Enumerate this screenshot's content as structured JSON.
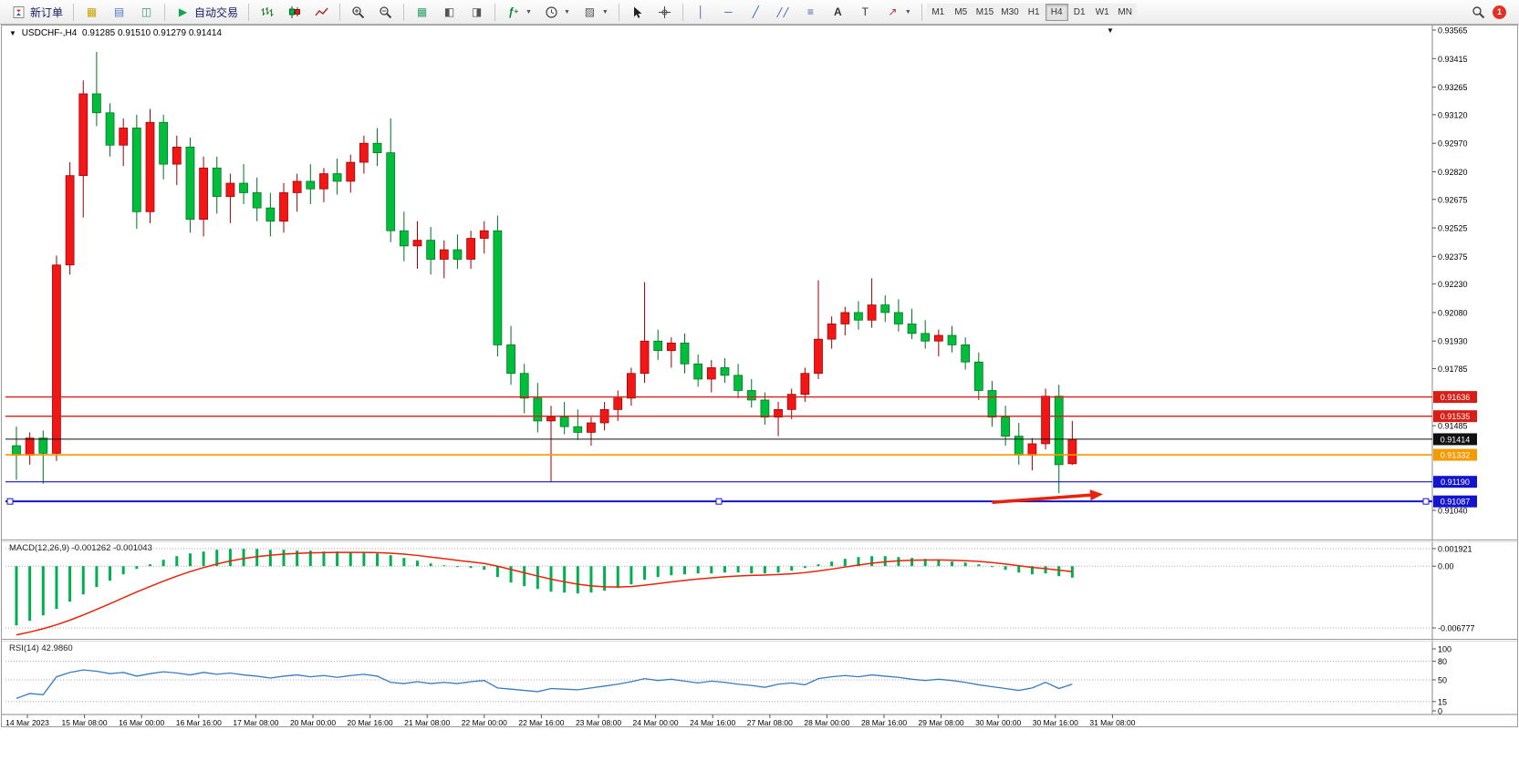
{
  "toolbar": {
    "new_order_label": "新订单",
    "auto_trading_label": "自动交易",
    "timeframes": [
      "M1",
      "M5",
      "M15",
      "M30",
      "H1",
      "H4",
      "D1",
      "W1",
      "MN"
    ],
    "active_timeframe": "H4",
    "notification_count": "1"
  },
  "chart": {
    "symbol_marker": "▼",
    "symbol_tf": "USDCHF-,H4",
    "ohlc_text": "0.91285 0.91510 0.91279 0.91414"
  },
  "macd_panel": {
    "label": "MACD(12,26,9)",
    "main_value": "-0.001262",
    "signal_value": "-0.001043"
  },
  "rsi_panel": {
    "label": "RSI(14)",
    "value": "42.9860"
  },
  "chart_data": [
    {
      "type": "candlestick",
      "title": "USDCHF-,H4",
      "timeframe": "H4",
      "ohlc_display": {
        "open": "0.91285",
        "high": "0.91510",
        "low": "0.91279",
        "close": "0.91414"
      },
      "bull_color": "#F21616",
      "bull_border": "#9E0000",
      "bear_color": "#00BE3C",
      "bear_border": "#00711F",
      "y_axis_labels": [
        "0.93565",
        "0.93415",
        "0.93265",
        "0.93120",
        "0.92970",
        "0.92820",
        "0.92675",
        "0.92525",
        "0.92375",
        "0.92230",
        "0.92080",
        "0.91930",
        "0.91785",
        "0.91485",
        "0.91040"
      ],
      "x_axis_labels": [
        "14 Mar 2023",
        "15 Mar 08:00",
        "16 Mar 00:00",
        "16 Mar 16:00",
        "17 Mar 08:00",
        "20 Mar 00:00",
        "20 Mar 16:00",
        "21 Mar 08:00",
        "22 Mar 00:00",
        "22 Mar 16:00",
        "23 Mar 08:00",
        "24 Mar 00:00",
        "24 Mar 16:00",
        "27 Mar 08:00",
        "28 Mar 00:00",
        "28 Mar 16:00",
        "29 Mar 08:00",
        "30 Mar 00:00",
        "30 Mar 16:00",
        "31 Mar 08:00"
      ],
      "hlines": [
        {
          "price": 0.91636,
          "label": "0.91636",
          "color": "#D91E18",
          "width": 1.4
        },
        {
          "price": 0.91535,
          "label": "0.91535",
          "color": "#D91E18",
          "width": 1.4
        },
        {
          "price": 0.91414,
          "label": "0.91414",
          "color": "#111111",
          "width": 1
        },
        {
          "price": 0.91332,
          "label": "0.91332",
          "color": "#F59A00",
          "width": 1.6
        },
        {
          "price": 0.9119,
          "label": "0.91190",
          "color": "#1414CC",
          "width": 1.2
        },
        {
          "price": 0.91087,
          "label": "0.91087",
          "color": "#1414CC",
          "width": 2,
          "handles": true
        }
      ],
      "arrow": {
        "i1": 73,
        "p1": 0.91082,
        "i2": 81.3,
        "p2": 0.91125,
        "color": "#E8230A"
      },
      "candles": [
        [
          0.9138,
          0.9148,
          0.912,
          0.9133
        ],
        [
          0.9133,
          0.9145,
          0.9128,
          0.9142
        ],
        [
          0.9142,
          0.9146,
          0.9118,
          0.9134
        ],
        [
          0.9134,
          0.9238,
          0.913,
          0.9233
        ],
        [
          0.9233,
          0.9287,
          0.9228,
          0.928
        ],
        [
          0.928,
          0.933,
          0.9258,
          0.9323
        ],
        [
          0.9323,
          0.9345,
          0.9306,
          0.9313
        ],
        [
          0.9313,
          0.9318,
          0.929,
          0.9296
        ],
        [
          0.9296,
          0.931,
          0.9285,
          0.9305
        ],
        [
          0.9305,
          0.9312,
          0.9252,
          0.9261
        ],
        [
          0.9261,
          0.9315,
          0.9255,
          0.9308
        ],
        [
          0.9308,
          0.9312,
          0.9278,
          0.9286
        ],
        [
          0.9286,
          0.9301,
          0.9275,
          0.9295
        ],
        [
          0.9295,
          0.93,
          0.925,
          0.9257
        ],
        [
          0.9257,
          0.929,
          0.9248,
          0.9284
        ],
        [
          0.9284,
          0.929,
          0.926,
          0.9269
        ],
        [
          0.9269,
          0.9281,
          0.9255,
          0.9276
        ],
        [
          0.9276,
          0.9286,
          0.9265,
          0.9271
        ],
        [
          0.9271,
          0.9279,
          0.9256,
          0.9263
        ],
        [
          0.9263,
          0.9271,
          0.9248,
          0.9256
        ],
        [
          0.9256,
          0.9276,
          0.925,
          0.9271
        ],
        [
          0.9271,
          0.9281,
          0.9261,
          0.9277
        ],
        [
          0.9277,
          0.9286,
          0.9265,
          0.9273
        ],
        [
          0.9273,
          0.9284,
          0.9266,
          0.9281
        ],
        [
          0.9281,
          0.9289,
          0.927,
          0.9277
        ],
        [
          0.9277,
          0.9291,
          0.9271,
          0.9287
        ],
        [
          0.9287,
          0.9301,
          0.9281,
          0.9297
        ],
        [
          0.9297,
          0.9305,
          0.9285,
          0.9292
        ],
        [
          0.9292,
          0.931,
          0.9245,
          0.9251
        ],
        [
          0.9251,
          0.9261,
          0.9235,
          0.9243
        ],
        [
          0.9243,
          0.9256,
          0.9231,
          0.9246
        ],
        [
          0.9246,
          0.9253,
          0.9228,
          0.9236
        ],
        [
          0.9236,
          0.9246,
          0.9226,
          0.9241
        ],
        [
          0.9241,
          0.9249,
          0.9231,
          0.9236
        ],
        [
          0.9236,
          0.9251,
          0.9231,
          0.9247
        ],
        [
          0.9247,
          0.9256,
          0.9239,
          0.9251
        ],
        [
          0.9251,
          0.9259,
          0.9185,
          0.9191
        ],
        [
          0.9191,
          0.9201,
          0.917,
          0.9176
        ],
        [
          0.9176,
          0.9181,
          0.9155,
          0.9163
        ],
        [
          0.9163,
          0.9171,
          0.9145,
          0.9151
        ],
        [
          0.9151,
          0.9159,
          0.9119,
          0.9153
        ],
        [
          0.9153,
          0.9161,
          0.9144,
          0.9148
        ],
        [
          0.9148,
          0.9157,
          0.9141,
          0.9145
        ],
        [
          0.9145,
          0.9153,
          0.9138,
          0.915
        ],
        [
          0.915,
          0.9161,
          0.9146,
          0.9157
        ],
        [
          0.9157,
          0.9167,
          0.9151,
          0.9163
        ],
        [
          0.9163,
          0.9179,
          0.9159,
          0.9176
        ],
        [
          0.9176,
          0.9224,
          0.9171,
          0.9193
        ],
        [
          0.9193,
          0.9199,
          0.9183,
          0.9188
        ],
        [
          0.9188,
          0.9195,
          0.9179,
          0.9192
        ],
        [
          0.9192,
          0.9197,
          0.9176,
          0.9181
        ],
        [
          0.9181,
          0.9186,
          0.9169,
          0.9173
        ],
        [
          0.9173,
          0.9183,
          0.9166,
          0.9179
        ],
        [
          0.9179,
          0.9184,
          0.9171,
          0.9175
        ],
        [
          0.9175,
          0.9181,
          0.9163,
          0.9167
        ],
        [
          0.9167,
          0.9173,
          0.9158,
          0.9162
        ],
        [
          0.9162,
          0.9166,
          0.9149,
          0.9153
        ],
        [
          0.9153,
          0.9161,
          0.9143,
          0.9157
        ],
        [
          0.9157,
          0.9168,
          0.9152,
          0.9165
        ],
        [
          0.9165,
          0.9179,
          0.9161,
          0.9176
        ],
        [
          0.9176,
          0.9225,
          0.9173,
          0.9194
        ],
        [
          0.9194,
          0.9206,
          0.9189,
          0.9202
        ],
        [
          0.9202,
          0.9211,
          0.9196,
          0.9208
        ],
        [
          0.9208,
          0.9214,
          0.9199,
          0.9204
        ],
        [
          0.9204,
          0.9226,
          0.92,
          0.9212
        ],
        [
          0.9212,
          0.9217,
          0.9203,
          0.9208
        ],
        [
          0.9208,
          0.9215,
          0.9198,
          0.9202
        ],
        [
          0.9202,
          0.921,
          0.9194,
          0.9197
        ],
        [
          0.9197,
          0.9204,
          0.9189,
          0.9193
        ],
        [
          0.9193,
          0.9199,
          0.9185,
          0.9196
        ],
        [
          0.9196,
          0.9201,
          0.9187,
          0.9191
        ],
        [
          0.9191,
          0.9195,
          0.9178,
          0.9182
        ],
        [
          0.9182,
          0.9187,
          0.9162,
          0.9167
        ],
        [
          0.9167,
          0.9172,
          0.9148,
          0.9153
        ],
        [
          0.9153,
          0.9159,
          0.9138,
          0.9143
        ],
        [
          0.9143,
          0.915,
          0.9128,
          0.9133
        ],
        [
          0.9133,
          0.9142,
          0.9125,
          0.9139
        ],
        [
          0.9139,
          0.9168,
          0.9136,
          0.9164
        ],
        [
          0.9164,
          0.917,
          0.9113,
          0.9128
        ],
        [
          0.91285,
          0.9151,
          0.91279,
          0.91414
        ]
      ]
    },
    {
      "type": "macd",
      "label": "MACD(12,26,9)",
      "main_value": -0.001262,
      "signal_value": -0.001043,
      "axis_labels": [
        "0.001921",
        "0.00",
        "-0.006777"
      ],
      "axis_values": [
        0.001921,
        0,
        -0.006777
      ],
      "histogram_color": "#00B050",
      "signal_color": "#E8230A",
      "signal_seed": -0.0078,
      "values": [
        -0.0065,
        -0.006,
        -0.0054,
        -0.0047,
        -0.0039,
        -0.0031,
        -0.0023,
        -0.0016,
        -0.0009,
        -0.0003,
        0.0002,
        0.0007,
        0.0011,
        0.0014,
        0.0016,
        0.0018,
        0.0019,
        0.0019,
        0.0019,
        0.0018,
        0.0018,
        0.0017,
        0.0017,
        0.0016,
        0.0016,
        0.0015,
        0.0015,
        0.0014,
        0.0012,
        0.0009,
        0.0006,
        0.0003,
        0.0001,
        -0.0001,
        -0.0002,
        -0.0004,
        -0.0012,
        -0.0018,
        -0.0022,
        -0.0025,
        -0.0028,
        -0.0029,
        -0.003,
        -0.0029,
        -0.0027,
        -0.0024,
        -0.002,
        -0.0015,
        -0.0012,
        -0.001,
        -0.0009,
        -0.0008,
        -0.0008,
        -0.0007,
        -0.0007,
        -0.0008,
        -0.0008,
        -0.0007,
        -0.0005,
        -0.0002,
        0.0002,
        0.0005,
        0.0008,
        0.001,
        0.0011,
        0.0011,
        0.001,
        0.0009,
        0.0008,
        0.0007,
        0.0005,
        0.0004,
        0.0002,
        -0.0001,
        -0.0004,
        -0.0007,
        -0.0009,
        -0.0008,
        -0.0011,
        -0.001262
      ]
    },
    {
      "type": "rsi",
      "label": "RSI(14)",
      "value": 42.986,
      "range": [
        0,
        100
      ],
      "levels": [
        80,
        50,
        15
      ],
      "axis_labels": [
        "100",
        "80",
        "50",
        "15",
        "0"
      ],
      "axis_values": [
        100,
        80,
        50,
        15,
        0
      ],
      "line_color": "#3A7BBF",
      "values": [
        20,
        28,
        26,
        55,
        62,
        66,
        64,
        60,
        62,
        56,
        60,
        63,
        61,
        58,
        62,
        59,
        61,
        58,
        56,
        53,
        56,
        58,
        55,
        57,
        54,
        57,
        59,
        56,
        46,
        44,
        47,
        44,
        46,
        44,
        47,
        49,
        37,
        35,
        33,
        31,
        36,
        35,
        34,
        37,
        40,
        43,
        47,
        52,
        49,
        51,
        48,
        45,
        48,
        46,
        43,
        41,
        38,
        43,
        45,
        42,
        52,
        55,
        57,
        55,
        58,
        56,
        54,
        51,
        49,
        51,
        49,
        46,
        42,
        39,
        36,
        33,
        37,
        46,
        36,
        43
      ]
    }
  ]
}
